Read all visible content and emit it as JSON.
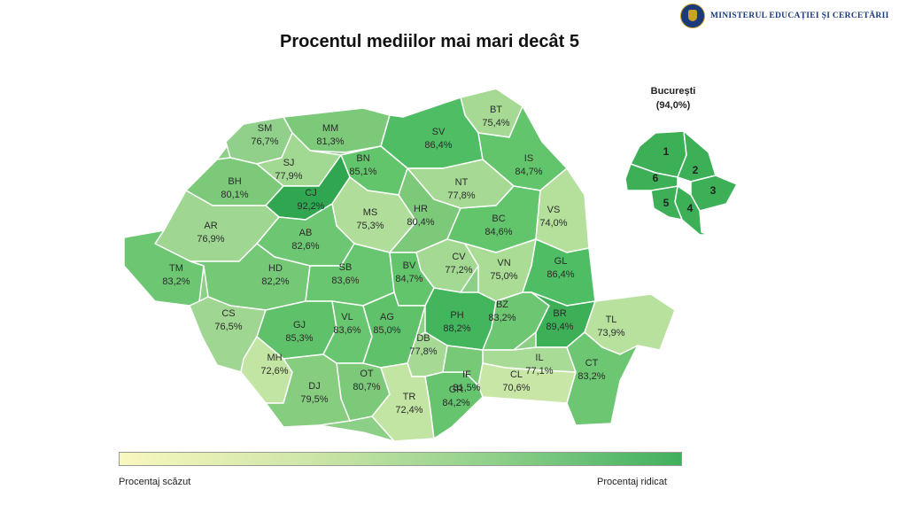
{
  "header": {
    "ministry": "MINISTERUL EDUCAȚIEI ȘI CERCETĂRII",
    "title": "Procentul mediilor mai mari decât 5"
  },
  "legend": {
    "low_label": "Procentaj scăzut",
    "high_label": "Procentaj ridicat",
    "colors": [
      "#f8f7bf",
      "#cfe6a8",
      "#8fd08b",
      "#3fb05c"
    ]
  },
  "bucharest": {
    "name": "București",
    "value": "(94,0%)",
    "sectors": [
      "1",
      "2",
      "3",
      "4",
      "5",
      "6"
    ]
  },
  "counties": [
    {
      "code": "SM",
      "value": "76,7%"
    },
    {
      "code": "MM",
      "value": "81,3%"
    },
    {
      "code": "BT",
      "value": "75,4%"
    },
    {
      "code": "SV",
      "value": "86,4%"
    },
    {
      "code": "SJ",
      "value": "77,9%"
    },
    {
      "code": "BN",
      "value": "85,1%"
    },
    {
      "code": "IS",
      "value": "84,7%"
    },
    {
      "code": "BH",
      "value": "80,1%"
    },
    {
      "code": "CJ",
      "value": "92,2%"
    },
    {
      "code": "NT",
      "value": "77,8%"
    },
    {
      "code": "MS",
      "value": "75,3%"
    },
    {
      "code": "HR",
      "value": "80,4%"
    },
    {
      "code": "BC",
      "value": "84,6%"
    },
    {
      "code": "VS",
      "value": "74,0%"
    },
    {
      "code": "AR",
      "value": "76,9%"
    },
    {
      "code": "AB",
      "value": "82,6%"
    },
    {
      "code": "CV",
      "value": "77,2%"
    },
    {
      "code": "VN",
      "value": "75,0%"
    },
    {
      "code": "GL",
      "value": "86,4%"
    },
    {
      "code": "TM",
      "value": "83,2%"
    },
    {
      "code": "HD",
      "value": "82,2%"
    },
    {
      "code": "SB",
      "value": "83,6%"
    },
    {
      "code": "BV",
      "value": "84,7%"
    },
    {
      "code": "CS",
      "value": "76,5%"
    },
    {
      "code": "GJ",
      "value": "85,3%"
    },
    {
      "code": "VL",
      "value": "83,6%"
    },
    {
      "code": "AG",
      "value": "85,0%"
    },
    {
      "code": "PH",
      "value": "88,2%"
    },
    {
      "code": "BZ",
      "value": "83,2%"
    },
    {
      "code": "BR",
      "value": "89,4%"
    },
    {
      "code": "TL",
      "value": "73,9%"
    },
    {
      "code": "MH",
      "value": "72,6%"
    },
    {
      "code": "DB",
      "value": "77,8%"
    },
    {
      "code": "IL",
      "value": "77,1%"
    },
    {
      "code": "OT",
      "value": "80,7%"
    },
    {
      "code": "DJ",
      "value": "79,5%"
    },
    {
      "code": "TR",
      "value": "72,4%"
    },
    {
      "code": "GR",
      "value": "84,2%"
    },
    {
      "code": "IF",
      "value": "81,5%"
    },
    {
      "code": "CL",
      "value": "70,6%"
    },
    {
      "code": "CT",
      "value": "83,2%"
    }
  ]
}
